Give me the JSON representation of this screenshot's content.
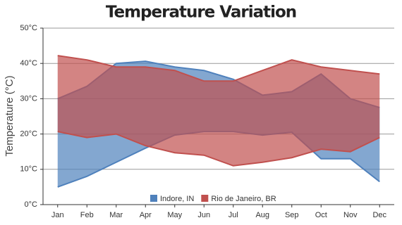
{
  "chart_data": {
    "type": "rangearea",
    "title": "Temperature Variation",
    "y_axis_label": "Temperature (°C)",
    "categories": [
      "Jan",
      "Feb",
      "Mar",
      "Apr",
      "May",
      "Jun",
      "Jul",
      "Aug",
      "Sep",
      "Oct",
      "Nov",
      "Dec"
    ],
    "series": [
      {
        "name": "Indore, IN",
        "color": "#4f81bc",
        "low": [
          5,
          8,
          12,
          16,
          19.7,
          20.7,
          20.7,
          19.7,
          20.5,
          13,
          13,
          6.5
        ],
        "high": [
          30,
          33.5,
          40,
          40.6,
          39,
          38,
          35.5,
          31,
          32,
          37,
          30,
          27.5
        ]
      },
      {
        "name": "Rio de Janeiro, BR",
        "color": "#c0504e",
        "low": [
          20.7,
          19,
          20,
          16.7,
          14.7,
          14,
          11,
          12,
          13.3,
          15.7,
          15,
          19
        ],
        "high": [
          42.2,
          41,
          39,
          39,
          38,
          35,
          35,
          38,
          41,
          39,
          38,
          37
        ]
      }
    ],
    "ylim": [
      0,
      50
    ],
    "yticks": [
      {
        "value": 0,
        "label": "0°C"
      },
      {
        "value": 10,
        "label": "10°C"
      },
      {
        "value": 20,
        "label": "20°C"
      },
      {
        "value": 30,
        "label": "30°C"
      },
      {
        "value": 40,
        "label": "40°C"
      },
      {
        "value": 50,
        "label": "50°C"
      }
    ],
    "grid": true,
    "legend": "bottom"
  }
}
